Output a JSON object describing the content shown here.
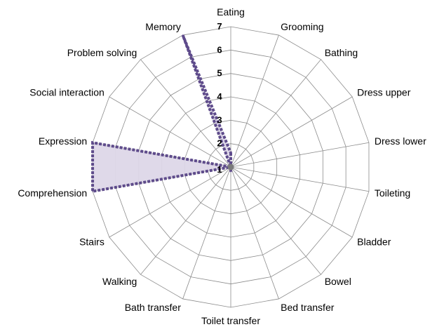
{
  "chart_data": {
    "type": "radar",
    "categories": [
      "Eating",
      "Grooming",
      "Bathing",
      "Dress upper",
      "Dress lower",
      "Toileting",
      "Bladder",
      "Bowel",
      "Bed transfer",
      "Toilet transfer",
      "Bath transfer",
      "Walking",
      "Stairs",
      "Comprehension",
      "Expression",
      "Social interaction",
      "Problem solving",
      "Memory"
    ],
    "series": [
      {
        "values": [
          1.6,
          1,
          1,
          1,
          1,
          1,
          1,
          1,
          1,
          1.2,
          1,
          1,
          1,
          7,
          7,
          1,
          1,
          7
        ]
      }
    ],
    "r_ticks": [
      "1",
      "2",
      "3",
      "4",
      "5",
      "6",
      "7"
    ],
    "rlim": [
      1,
      7
    ],
    "grid": true,
    "legend": "none",
    "colors": {
      "line": "#5e4b8b",
      "fill": "#ddd7e8",
      "grid": "#8c8c8c",
      "center": "#7a7a7a"
    }
  }
}
